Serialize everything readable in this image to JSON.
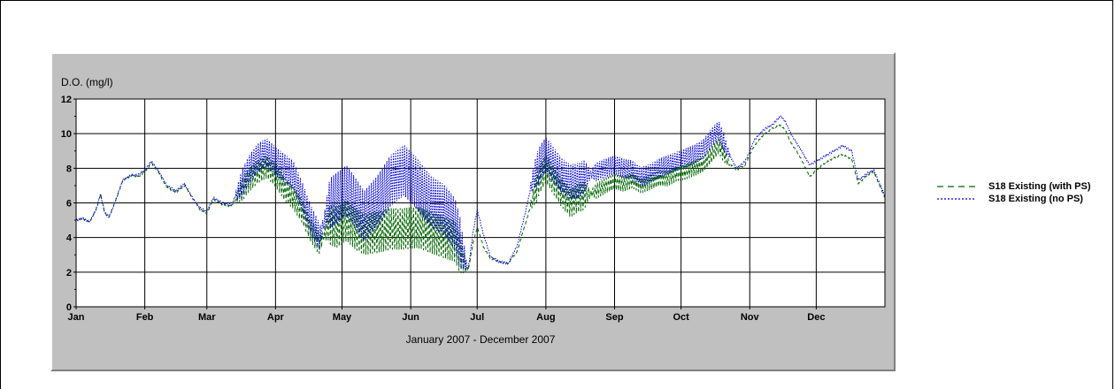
{
  "chart_data": {
    "type": "line",
    "ylabel": "D.O. (mg/l)",
    "xlabel": "January 2007 - December 2007",
    "ylim": [
      0,
      12
    ],
    "yticks": [
      0,
      2,
      4,
      6,
      8,
      10,
      12
    ],
    "xlim": [
      0,
      365
    ],
    "grid": true,
    "legend_position": "right, outside plot",
    "months": [
      {
        "label": "Jan",
        "day": 0
      },
      {
        "label": "Feb",
        "day": 31
      },
      {
        "label": "Mar",
        "day": 59
      },
      {
        "label": "Apr",
        "day": 90
      },
      {
        "label": "May",
        "day": 120
      },
      {
        "label": "Jun",
        "day": 151
      },
      {
        "label": "Jul",
        "day": 181
      },
      {
        "label": "Aug",
        "day": 212
      },
      {
        "label": "Sep",
        "day": 243
      },
      {
        "label": "Oct",
        "day": 273
      },
      {
        "label": "Nov",
        "day": 304
      },
      {
        "label": "Dec",
        "day": 334
      }
    ],
    "series": [
      {
        "name": "S18 Existing (with PS)",
        "color": "#006400",
        "style": "dashed",
        "points": [
          [
            0,
            5.0
          ],
          [
            3,
            5.1
          ],
          [
            6,
            4.9
          ],
          [
            9,
            5.6
          ],
          [
            11,
            6.5
          ],
          [
            13,
            5.4
          ],
          [
            15,
            5.2
          ],
          [
            18,
            6.2
          ],
          [
            21,
            7.3
          ],
          [
            25,
            7.6
          ],
          [
            28,
            7.5
          ],
          [
            31,
            7.8
          ],
          [
            34,
            8.3
          ],
          [
            37,
            7.8
          ],
          [
            41,
            6.9
          ],
          [
            45,
            6.6
          ],
          [
            49,
            7.0
          ],
          [
            53,
            6.2
          ],
          [
            56,
            5.6
          ],
          [
            59,
            5.4
          ],
          [
            62,
            6.2
          ],
          [
            66,
            5.9
          ],
          [
            70,
            5.8
          ],
          [
            74,
            6.6
          ],
          [
            78,
            7.3
          ],
          [
            82,
            7.8
          ],
          [
            86,
            8.1
          ],
          [
            90,
            7.6
          ],
          [
            94,
            6.8
          ],
          [
            98,
            6.3
          ],
          [
            102,
            5.5
          ],
          [
            106,
            4.4
          ],
          [
            110,
            3.6
          ],
          [
            114,
            4.8
          ],
          [
            118,
            4.6
          ],
          [
            122,
            5.0
          ],
          [
            126,
            4.5
          ],
          [
            130,
            4.2
          ],
          [
            136,
            4.3
          ],
          [
            142,
            4.5
          ],
          [
            148,
            4.5
          ],
          [
            154,
            4.6
          ],
          [
            160,
            4.3
          ],
          [
            166,
            4.0
          ],
          [
            171,
            3.8
          ],
          [
            175,
            2.6
          ],
          [
            177,
            2.1
          ],
          [
            179,
            3.6
          ],
          [
            181,
            4.6
          ],
          [
            184,
            3.4
          ],
          [
            187,
            2.8
          ],
          [
            191,
            2.6
          ],
          [
            195,
            2.5
          ],
          [
            199,
            3.2
          ],
          [
            203,
            4.9
          ],
          [
            206,
            6.2
          ],
          [
            209,
            7.3
          ],
          [
            212,
            8.0
          ],
          [
            215,
            7.4
          ],
          [
            219,
            6.6
          ],
          [
            223,
            6.0
          ],
          [
            227,
            6.3
          ],
          [
            231,
            6.5
          ],
          [
            235,
            6.7
          ],
          [
            239,
            7.0
          ],
          [
            243,
            7.2
          ],
          [
            247,
            7.1
          ],
          [
            251,
            7.3
          ],
          [
            255,
            7.0
          ],
          [
            259,
            7.2
          ],
          [
            263,
            7.4
          ],
          [
            267,
            7.4
          ],
          [
            271,
            7.7
          ],
          [
            275,
            7.8
          ],
          [
            279,
            8.0
          ],
          [
            283,
            8.2
          ],
          [
            287,
            8.8
          ],
          [
            290,
            9.3
          ],
          [
            294,
            8.4
          ],
          [
            298,
            7.9
          ],
          [
            302,
            8.2
          ],
          [
            306,
            9.3
          ],
          [
            310,
            9.9
          ],
          [
            314,
            10.3
          ],
          [
            318,
            10.5
          ],
          [
            320,
            10.2
          ],
          [
            323,
            9.4
          ],
          [
            327,
            8.6
          ],
          [
            331,
            7.5
          ],
          [
            334,
            7.9
          ],
          [
            338,
            8.3
          ],
          [
            342,
            8.6
          ],
          [
            346,
            8.8
          ],
          [
            350,
            8.5
          ],
          [
            353,
            7.1
          ],
          [
            357,
            7.6
          ],
          [
            360,
            7.8
          ],
          [
            362,
            7.2
          ],
          [
            365,
            6.3
          ]
        ]
      },
      {
        "name": "S18 Existing (no PS)",
        "color": "#0000cd",
        "style": "dotted",
        "points": [
          [
            0,
            5.0
          ],
          [
            3,
            5.1
          ],
          [
            6,
            4.9
          ],
          [
            9,
            5.6
          ],
          [
            11,
            6.5
          ],
          [
            13,
            5.4
          ],
          [
            15,
            5.2
          ],
          [
            18,
            6.2
          ],
          [
            21,
            7.3
          ],
          [
            25,
            7.6
          ],
          [
            28,
            7.6
          ],
          [
            31,
            7.9
          ],
          [
            34,
            8.4
          ],
          [
            37,
            7.9
          ],
          [
            41,
            7.0
          ],
          [
            45,
            6.7
          ],
          [
            49,
            7.1
          ],
          [
            53,
            6.2
          ],
          [
            56,
            5.7
          ],
          [
            59,
            5.5
          ],
          [
            62,
            6.3
          ],
          [
            66,
            6.0
          ],
          [
            70,
            5.9
          ],
          [
            74,
            6.9
          ],
          [
            78,
            7.9
          ],
          [
            82,
            8.6
          ],
          [
            86,
            8.9
          ],
          [
            90,
            8.4
          ],
          [
            94,
            8.0
          ],
          [
            98,
            7.6
          ],
          [
            102,
            6.4
          ],
          [
            106,
            5.0
          ],
          [
            110,
            4.0
          ],
          [
            114,
            5.9
          ],
          [
            118,
            6.3
          ],
          [
            122,
            6.7
          ],
          [
            126,
            6.0
          ],
          [
            130,
            5.2
          ],
          [
            136,
            6.1
          ],
          [
            142,
            7.3
          ],
          [
            148,
            7.9
          ],
          [
            154,
            7.1
          ],
          [
            160,
            6.1
          ],
          [
            166,
            5.6
          ],
          [
            171,
            4.8
          ],
          [
            175,
            2.9
          ],
          [
            177,
            2.2
          ],
          [
            179,
            4.2
          ],
          [
            181,
            5.6
          ],
          [
            184,
            4.1
          ],
          [
            187,
            2.9
          ],
          [
            191,
            2.6
          ],
          [
            195,
            2.5
          ],
          [
            199,
            3.5
          ],
          [
            203,
            5.6
          ],
          [
            206,
            7.3
          ],
          [
            209,
            8.2
          ],
          [
            212,
            8.8
          ],
          [
            215,
            8.3
          ],
          [
            219,
            7.6
          ],
          [
            223,
            7.2
          ],
          [
            227,
            7.3
          ],
          [
            231,
            7.6
          ],
          [
            235,
            7.8
          ],
          [
            239,
            8.0
          ],
          [
            243,
            8.2
          ],
          [
            247,
            8.0
          ],
          [
            251,
            7.9
          ],
          [
            255,
            7.5
          ],
          [
            259,
            7.7
          ],
          [
            263,
            8.0
          ],
          [
            267,
            8.2
          ],
          [
            271,
            8.4
          ],
          [
            275,
            8.6
          ],
          [
            279,
            8.8
          ],
          [
            283,
            9.1
          ],
          [
            287,
            9.8
          ],
          [
            290,
            10.2
          ],
          [
            294,
            9.0
          ],
          [
            298,
            8.0
          ],
          [
            302,
            8.4
          ],
          [
            306,
            9.6
          ],
          [
            310,
            10.2
          ],
          [
            314,
            10.5
          ],
          [
            318,
            11.0
          ],
          [
            320,
            10.7
          ],
          [
            323,
            9.9
          ],
          [
            327,
            9.1
          ],
          [
            331,
            8.2
          ],
          [
            334,
            8.4
          ],
          [
            338,
            8.7
          ],
          [
            342,
            9.0
          ],
          [
            346,
            9.3
          ],
          [
            350,
            9.0
          ],
          [
            353,
            7.3
          ],
          [
            357,
            7.7
          ],
          [
            360,
            7.9
          ],
          [
            362,
            7.3
          ],
          [
            365,
            6.4
          ]
        ]
      }
    ],
    "oscillation": [
      {
        "from": 72,
        "to": 112,
        "amplitude": 0.9
      },
      {
        "from": 112,
        "to": 176,
        "amplitude": 1.6
      },
      {
        "from": 205,
        "to": 232,
        "amplitude": 1.1
      },
      {
        "from": 232,
        "to": 295,
        "amplitude": 0.6
      }
    ]
  }
}
